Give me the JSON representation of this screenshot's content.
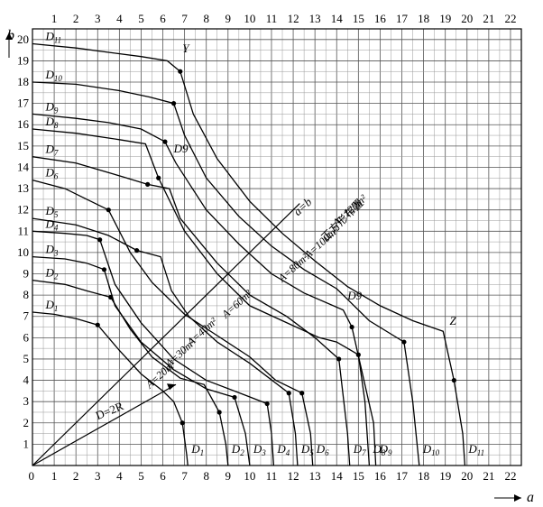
{
  "chart_data": {
    "type": "line",
    "x_axis": {
      "label": "a",
      "min": 0,
      "max": 22.5,
      "ticks": [
        0,
        1,
        2,
        3,
        4,
        5,
        6,
        7,
        8,
        9,
        10,
        11,
        12,
        13,
        14,
        15,
        16,
        17,
        18,
        19,
        20,
        21,
        22
      ]
    },
    "y_axis": {
      "label": "b",
      "min": 0,
      "max": 20.5,
      "ticks": [
        0,
        1,
        2,
        3,
        4,
        5,
        6,
        7,
        8,
        9,
        10,
        11,
        12,
        13,
        14,
        15,
        16,
        17,
        18,
        19,
        20
      ]
    },
    "grid": true,
    "series": [
      {
        "name": "D1",
        "sub": "1",
        "points": [
          [
            0,
            7.2
          ],
          [
            1,
            7.1
          ],
          [
            2,
            6.9
          ],
          [
            3,
            6.6
          ],
          [
            4,
            5.4
          ],
          [
            5,
            4.3
          ],
          [
            6,
            3.5
          ],
          [
            6.5,
            3.0
          ],
          [
            6.9,
            2.0
          ],
          [
            7.1,
            0.5
          ],
          [
            7.15,
            0
          ]
        ]
      },
      {
        "name": "D2",
        "sub": "2",
        "points": [
          [
            0,
            8.7
          ],
          [
            1.5,
            8.5
          ],
          [
            2.5,
            8.2
          ],
          [
            3.6,
            7.9
          ],
          [
            4.5,
            6.4
          ],
          [
            5.5,
            5.1
          ],
          [
            6.8,
            4.1
          ],
          [
            7.9,
            3.8
          ],
          [
            8.6,
            2.5
          ],
          [
            8.9,
            1.0
          ],
          [
            9.0,
            0
          ]
        ]
      },
      {
        "name": "D3",
        "sub": "3",
        "points": [
          [
            0,
            9.8
          ],
          [
            1.5,
            9.7
          ],
          [
            2.5,
            9.5
          ],
          [
            3.3,
            9.2
          ],
          [
            3.8,
            7.5
          ],
          [
            5,
            5.8
          ],
          [
            6.5,
            4.5
          ],
          [
            8,
            3.6
          ],
          [
            9.3,
            3.2
          ],
          [
            9.8,
            1.5
          ],
          [
            10,
            0
          ]
        ]
      },
      {
        "name": "D4",
        "sub": "4",
        "points": [
          [
            0,
            11.0
          ],
          [
            1.5,
            10.9
          ],
          [
            2.5,
            10.8
          ],
          [
            3.1,
            10.6
          ],
          [
            3.8,
            8.5
          ],
          [
            5,
            6.7
          ],
          [
            6.5,
            5.0
          ],
          [
            8,
            4.0
          ],
          [
            9.8,
            3.3
          ],
          [
            10.8,
            2.9
          ],
          [
            11,
            1.5
          ],
          [
            11.1,
            0
          ]
        ]
      },
      {
        "name": "D5",
        "sub": "5",
        "points": [
          [
            0,
            11.6
          ],
          [
            2,
            11.3
          ],
          [
            3.5,
            10.8
          ],
          [
            4.8,
            10.1
          ],
          [
            5.9,
            9.8
          ],
          [
            6.4,
            8.2
          ],
          [
            7.2,
            7.0
          ],
          [
            8.5,
            5.8
          ],
          [
            10,
            4.8
          ],
          [
            11.8,
            3.4
          ],
          [
            12.1,
            1.5
          ],
          [
            12.2,
            0
          ]
        ]
      },
      {
        "name": "D6",
        "sub": "6",
        "points": [
          [
            0,
            13.4
          ],
          [
            1.5,
            13.0
          ],
          [
            2.5,
            12.5
          ],
          [
            3.5,
            12.0
          ],
          [
            4.5,
            10.0
          ],
          [
            5.5,
            8.6
          ],
          [
            7,
            7.1
          ],
          [
            8.5,
            6.1
          ],
          [
            10,
            5.1
          ],
          [
            11.2,
            4.0
          ],
          [
            12.4,
            3.4
          ],
          [
            12.8,
            1.5
          ],
          [
            12.9,
            0
          ]
        ]
      },
      {
        "name": "D7",
        "sub": "7",
        "points": [
          [
            0,
            14.5
          ],
          [
            2,
            14.2
          ],
          [
            4,
            13.6
          ],
          [
            5.3,
            13.2
          ],
          [
            6.3,
            13.0
          ],
          [
            6.8,
            11.6
          ],
          [
            8.5,
            9.5
          ],
          [
            10,
            8.0
          ],
          [
            11.7,
            7.0
          ],
          [
            13,
            6.0
          ],
          [
            14.1,
            5.0
          ],
          [
            14.5,
            1.5
          ],
          [
            14.6,
            0
          ]
        ]
      },
      {
        "name": "D8",
        "sub": "8",
        "points": [
          [
            0,
            15.8
          ],
          [
            2,
            15.6
          ],
          [
            4,
            15.3
          ],
          [
            5.2,
            15.1
          ],
          [
            5.8,
            13.5
          ],
          [
            7,
            11.0
          ],
          [
            8.5,
            9.0
          ],
          [
            10,
            7.5
          ],
          [
            11.5,
            6.8
          ],
          [
            13.2,
            6.0
          ],
          [
            14,
            5.8
          ],
          [
            15,
            5.2
          ],
          [
            15.3,
            3.0
          ],
          [
            15.5,
            0
          ]
        ]
      },
      {
        "name": "D9",
        "sub": "9",
        "points": [
          [
            0,
            16.5
          ],
          [
            2,
            16.3
          ],
          [
            3.5,
            16.1
          ],
          [
            5,
            15.8
          ],
          [
            6.1,
            15.2
          ],
          [
            6.6,
            14.2
          ],
          [
            8,
            12.0
          ],
          [
            9.5,
            10.4
          ],
          [
            11,
            9.0
          ],
          [
            12.5,
            8.1
          ],
          [
            14.3,
            7.3
          ],
          [
            14.7,
            6.5
          ],
          [
            15.7,
            2.0
          ],
          [
            15.8,
            0
          ]
        ]
      },
      {
        "name": "D10",
        "sub": "10",
        "points": [
          [
            0,
            18.0
          ],
          [
            2,
            17.9
          ],
          [
            4,
            17.6
          ],
          [
            5.4,
            17.3
          ],
          [
            6.5,
            17.0
          ],
          [
            7.0,
            15.5
          ],
          [
            8,
            13.5
          ],
          [
            9.5,
            11.7
          ],
          [
            11,
            10.3
          ],
          [
            12.5,
            9.2
          ],
          [
            14,
            8.3
          ],
          [
            15.5,
            6.8
          ],
          [
            17.1,
            5.8
          ],
          [
            17.5,
            3.0
          ],
          [
            17.8,
            0
          ]
        ]
      },
      {
        "name": "D11",
        "sub": "11",
        "points": [
          [
            0,
            19.8
          ],
          [
            2,
            19.6
          ],
          [
            3.5,
            19.4
          ],
          [
            5,
            19.2
          ],
          [
            6.2,
            19.0
          ],
          [
            6.8,
            18.5
          ],
          [
            7.4,
            16.5
          ],
          [
            8.5,
            14.4
          ],
          [
            10,
            12.4
          ],
          [
            11.5,
            10.9
          ],
          [
            13,
            9.6
          ],
          [
            14.5,
            8.4
          ],
          [
            16,
            7.5
          ],
          [
            17.5,
            6.8
          ],
          [
            18.9,
            6.3
          ],
          [
            19.4,
            4.0
          ],
          [
            19.8,
            1.5
          ],
          [
            19.9,
            0
          ]
        ]
      }
    ],
    "reference_line": {
      "label": "a=b",
      "points": [
        [
          0,
          0
        ],
        [
          12.3,
          12.3
        ]
      ]
    },
    "radius_arrow": {
      "label": "D=2R",
      "from": [
        0,
        0
      ],
      "to": [
        6.6,
        3.8
      ]
    },
    "annotations": [
      {
        "text": "Y",
        "at": [
          6.9,
          19.4
        ]
      },
      {
        "text": "Z",
        "at": [
          19.2,
          6.6
        ]
      },
      {
        "text": "D9′",
        "at": [
          6.5,
          14.7
        ]
      },
      {
        "text": "D9",
        "at": [
          14.5,
          7.8
        ]
      },
      {
        "text": "正方形布置",
        "at": [
          13.5,
          10.5
        ]
      }
    ],
    "area_labels": [
      {
        "text": "A=20m²",
        "at": [
          5.4,
          3.6
        ]
      },
      {
        "text": "A=30m²",
        "at": [
          6.3,
          4.6
        ]
      },
      {
        "text": "A=40m²",
        "at": [
          7.3,
          5.6
        ]
      },
      {
        "text": "A=60m²",
        "at": [
          8.9,
          6.9
        ]
      },
      {
        "text": "A=80m²",
        "at": [
          11.5,
          8.6
        ]
      },
      {
        "text": "A=100m²",
        "at": [
          12.7,
          9.7
        ]
      },
      {
        "text": "A=120m²",
        "at": [
          14.0,
          11.2
        ]
      }
    ]
  }
}
